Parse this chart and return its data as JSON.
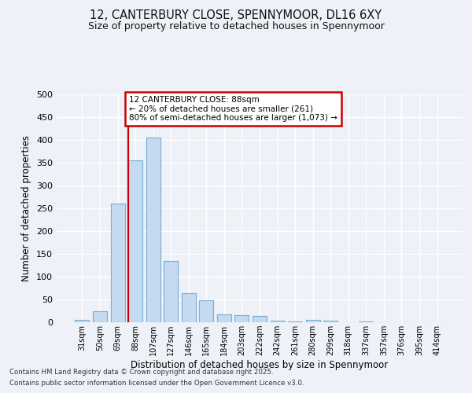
{
  "title1": "12, CANTERBURY CLOSE, SPENNYMOOR, DL16 6XY",
  "title2": "Size of property relative to detached houses in Spennymoor",
  "xlabel": "Distribution of detached houses by size in Spennymoor",
  "ylabel": "Number of detached properties",
  "categories": [
    "31sqm",
    "50sqm",
    "69sqm",
    "88sqm",
    "107sqm",
    "127sqm",
    "146sqm",
    "165sqm",
    "184sqm",
    "203sqm",
    "222sqm",
    "242sqm",
    "261sqm",
    "280sqm",
    "299sqm",
    "318sqm",
    "337sqm",
    "357sqm",
    "376sqm",
    "395sqm",
    "414sqm"
  ],
  "values": [
    5,
    25,
    260,
    355,
    405,
    135,
    63,
    49,
    18,
    15,
    13,
    3,
    1,
    6,
    3,
    0,
    1,
    0,
    0,
    0,
    0
  ],
  "bar_color": "#c5d9f0",
  "bar_edge_color": "#7bafd4",
  "redline_index": 3,
  "redline_color": "#cc0000",
  "annotation_text": "12 CANTERBURY CLOSE: 88sqm\n← 20% of detached houses are smaller (261)\n80% of semi-detached houses are larger (1,073) →",
  "annotation_box_color": "#ffffff",
  "annotation_box_edge_color": "#cc0000",
  "background_color": "#eef2f8",
  "grid_color": "#ffffff",
  "ylim": [
    0,
    500
  ],
  "yticks": [
    0,
    50,
    100,
    150,
    200,
    250,
    300,
    350,
    400,
    450,
    500
  ],
  "footer1": "Contains HM Land Registry data © Crown copyright and database right 2025.",
  "footer2": "Contains public sector information licensed under the Open Government Licence v3.0."
}
